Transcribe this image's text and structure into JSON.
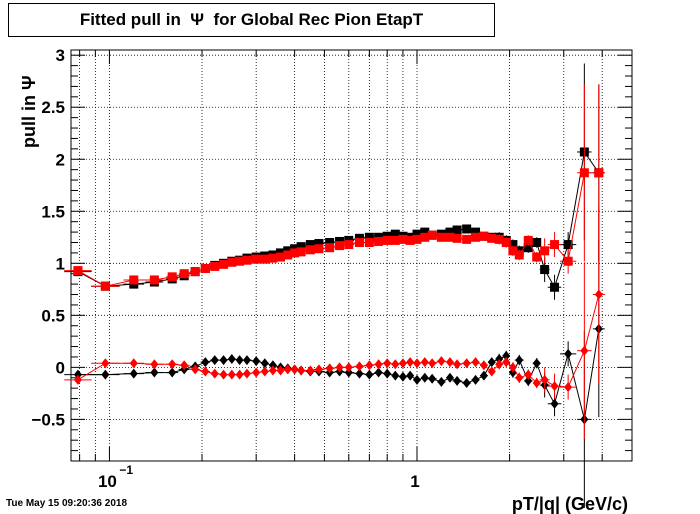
{
  "title": "Fitted pull in  Ψ  for Global Rec Pion EtapT",
  "timestamp": "Tue May 15 09:20:36 2018",
  "chart_data": {
    "type": "scatter",
    "title": "Fitted pull in  Ψ  for Global Rec Pion EtapT",
    "xlabel": "pT/|q| (GeV/c)",
    "ylabel": "pull in  Ψ",
    "x_scale": "log",
    "xlim": [
      0.075,
      5.0
    ],
    "ylim": [
      -0.9,
      3.05
    ],
    "grid": true,
    "x_tick_labels": [
      {
        "value": 0.1,
        "label": "10",
        "sup": "−1"
      },
      {
        "value": 1,
        "label": "1",
        "sup": ""
      }
    ],
    "y_tick_labels": [
      {
        "value": -0.5,
        "label": "−0.5"
      },
      {
        "value": 0,
        "label": "0"
      },
      {
        "value": 0.5,
        "label": "0.5"
      },
      {
        "value": 1,
        "label": "1"
      },
      {
        "value": 1.5,
        "label": "1.5"
      },
      {
        "value": 2,
        "label": "2"
      },
      {
        "value": 2.5,
        "label": "2.5"
      },
      {
        "value": 3,
        "label": "3"
      }
    ],
    "series": [
      {
        "color": "#000000",
        "marker": "square",
        "points": [
          [
            0.079,
            0.92
          ],
          [
            0.097,
            0.78
          ],
          [
            0.12,
            0.8
          ],
          [
            0.14,
            0.82
          ],
          [
            0.16,
            0.85
          ],
          [
            0.175,
            0.88
          ],
          [
            0.19,
            0.92
          ],
          [
            0.205,
            0.95
          ],
          [
            0.22,
            0.98
          ],
          [
            0.235,
            1.0
          ],
          [
            0.25,
            1.02
          ],
          [
            0.265,
            1.03
          ],
          [
            0.28,
            1.05
          ],
          [
            0.3,
            1.06
          ],
          [
            0.32,
            1.07
          ],
          [
            0.34,
            1.08
          ],
          [
            0.36,
            1.1
          ],
          [
            0.38,
            1.12
          ],
          [
            0.4,
            1.14
          ],
          [
            0.42,
            1.16
          ],
          [
            0.45,
            1.18
          ],
          [
            0.48,
            1.19
          ],
          [
            0.52,
            1.2
          ],
          [
            0.56,
            1.21
          ],
          [
            0.6,
            1.22
          ],
          [
            0.65,
            1.24
          ],
          [
            0.7,
            1.25
          ],
          [
            0.75,
            1.25
          ],
          [
            0.8,
            1.26
          ],
          [
            0.85,
            1.28
          ],
          [
            0.9,
            1.26
          ],
          [
            0.95,
            1.25
          ],
          [
            1.0,
            1.28
          ],
          [
            1.06,
            1.3
          ],
          [
            1.12,
            1.27
          ],
          [
            1.2,
            1.28
          ],
          [
            1.28,
            1.3
          ],
          [
            1.35,
            1.32
          ],
          [
            1.45,
            1.33
          ],
          [
            1.55,
            1.3
          ],
          [
            1.65,
            1.26
          ],
          [
            1.75,
            1.25
          ],
          [
            1.85,
            1.25
          ],
          [
            1.95,
            1.22
          ],
          [
            2.05,
            1.18
          ],
          [
            2.15,
            1.12
          ],
          [
            2.3,
            1.15
          ],
          [
            2.45,
            1.2
          ],
          [
            2.6,
            0.94
          ],
          [
            2.8,
            0.77
          ],
          [
            3.1,
            1.18
          ],
          [
            3.5,
            2.07
          ],
          [
            3.9,
            1.87
          ]
        ]
      },
      {
        "color": "#ff0000",
        "marker": "square",
        "points": [
          [
            0.079,
            0.93
          ],
          [
            0.097,
            0.78
          ],
          [
            0.12,
            0.84
          ],
          [
            0.14,
            0.84
          ],
          [
            0.16,
            0.87
          ],
          [
            0.175,
            0.9
          ],
          [
            0.19,
            0.92
          ],
          [
            0.205,
            0.95
          ],
          [
            0.22,
            0.97
          ],
          [
            0.235,
            0.99
          ],
          [
            0.25,
            1.01
          ],
          [
            0.265,
            1.02
          ],
          [
            0.28,
            1.03
          ],
          [
            0.3,
            1.04
          ],
          [
            0.32,
            1.04
          ],
          [
            0.34,
            1.05
          ],
          [
            0.36,
            1.06
          ],
          [
            0.38,
            1.08
          ],
          [
            0.4,
            1.1
          ],
          [
            0.42,
            1.11
          ],
          [
            0.45,
            1.13
          ],
          [
            0.48,
            1.14
          ],
          [
            0.52,
            1.15
          ],
          [
            0.56,
            1.17
          ],
          [
            0.6,
            1.18
          ],
          [
            0.65,
            1.2
          ],
          [
            0.7,
            1.2
          ],
          [
            0.75,
            1.21
          ],
          [
            0.8,
            1.22
          ],
          [
            0.85,
            1.22
          ],
          [
            0.9,
            1.23
          ],
          [
            0.95,
            1.22
          ],
          [
            1.0,
            1.23
          ],
          [
            1.06,
            1.25
          ],
          [
            1.12,
            1.27
          ],
          [
            1.2,
            1.25
          ],
          [
            1.28,
            1.25
          ],
          [
            1.35,
            1.24
          ],
          [
            1.45,
            1.23
          ],
          [
            1.55,
            1.25
          ],
          [
            1.65,
            1.26
          ],
          [
            1.75,
            1.24
          ],
          [
            1.85,
            1.23
          ],
          [
            1.95,
            1.2
          ],
          [
            2.05,
            1.12
          ],
          [
            2.15,
            1.08
          ],
          [
            2.3,
            1.22
          ],
          [
            2.45,
            1.06
          ],
          [
            2.6,
            1.12
          ],
          [
            2.8,
            1.18
          ],
          [
            3.1,
            1.02
          ],
          [
            3.5,
            1.87
          ],
          [
            3.9,
            1.87
          ]
        ]
      },
      {
        "color": "#000000",
        "marker": "diamond",
        "points": [
          [
            0.079,
            -0.07
          ],
          [
            0.097,
            -0.07
          ],
          [
            0.12,
            -0.06
          ],
          [
            0.14,
            -0.05
          ],
          [
            0.16,
            -0.05
          ],
          [
            0.175,
            -0.02
          ],
          [
            0.19,
            0.01
          ],
          [
            0.205,
            0.05
          ],
          [
            0.22,
            0.07
          ],
          [
            0.235,
            0.07
          ],
          [
            0.25,
            0.08
          ],
          [
            0.265,
            0.07
          ],
          [
            0.28,
            0.07
          ],
          [
            0.3,
            0.06
          ],
          [
            0.32,
            0.04
          ],
          [
            0.34,
            0.02
          ],
          [
            0.36,
            0.0
          ],
          [
            0.38,
            -0.01
          ],
          [
            0.4,
            -0.02
          ],
          [
            0.42,
            -0.03
          ],
          [
            0.45,
            -0.04
          ],
          [
            0.48,
            -0.04
          ],
          [
            0.52,
            -0.05
          ],
          [
            0.56,
            -0.04
          ],
          [
            0.6,
            -0.05
          ],
          [
            0.65,
            -0.06
          ],
          [
            0.7,
            -0.07
          ],
          [
            0.75,
            -0.05
          ],
          [
            0.8,
            -0.06
          ],
          [
            0.85,
            -0.08
          ],
          [
            0.9,
            -0.09
          ],
          [
            0.95,
            -0.08
          ],
          [
            1.0,
            -0.12
          ],
          [
            1.06,
            -0.1
          ],
          [
            1.12,
            -0.11
          ],
          [
            1.2,
            -0.14
          ],
          [
            1.28,
            -0.1
          ],
          [
            1.35,
            -0.13
          ],
          [
            1.45,
            -0.15
          ],
          [
            1.55,
            -0.12
          ],
          [
            1.65,
            -0.08
          ],
          [
            1.75,
            0.05
          ],
          [
            1.85,
            0.08
          ],
          [
            1.95,
            0.11
          ],
          [
            2.05,
            -0.05
          ],
          [
            2.15,
            0.07
          ],
          [
            2.3,
            -0.13
          ],
          [
            2.45,
            0.04
          ],
          [
            2.6,
            -0.17
          ],
          [
            2.8,
            -0.35
          ],
          [
            3.1,
            0.13
          ],
          [
            3.5,
            -0.5
          ],
          [
            3.9,
            0.37
          ]
        ]
      },
      {
        "color": "#ff0000",
        "marker": "diamond",
        "points": [
          [
            0.079,
            -0.12
          ],
          [
            0.097,
            0.04
          ],
          [
            0.12,
            0.04
          ],
          [
            0.14,
            0.03
          ],
          [
            0.16,
            0.03
          ],
          [
            0.175,
            0.02
          ],
          [
            0.19,
            -0.02
          ],
          [
            0.205,
            -0.04
          ],
          [
            0.22,
            -0.06
          ],
          [
            0.235,
            -0.07
          ],
          [
            0.25,
            -0.07
          ],
          [
            0.265,
            -0.07
          ],
          [
            0.28,
            -0.06
          ],
          [
            0.3,
            -0.05
          ],
          [
            0.32,
            -0.04
          ],
          [
            0.34,
            -0.03
          ],
          [
            0.36,
            -0.03
          ],
          [
            0.38,
            -0.02
          ],
          [
            0.4,
            -0.02
          ],
          [
            0.42,
            -0.03
          ],
          [
            0.45,
            -0.03
          ],
          [
            0.48,
            -0.02
          ],
          [
            0.52,
            -0.01
          ],
          [
            0.56,
            0.0
          ],
          [
            0.6,
            0.0
          ],
          [
            0.65,
            0.01
          ],
          [
            0.7,
            0.02
          ],
          [
            0.75,
            0.03
          ],
          [
            0.8,
            0.04
          ],
          [
            0.85,
            0.03
          ],
          [
            0.9,
            0.04
          ],
          [
            0.95,
            0.05
          ],
          [
            1.0,
            0.04
          ],
          [
            1.06,
            0.05
          ],
          [
            1.12,
            0.04
          ],
          [
            1.2,
            0.06
          ],
          [
            1.28,
            0.05
          ],
          [
            1.35,
            0.03
          ],
          [
            1.45,
            0.04
          ],
          [
            1.55,
            0.05
          ],
          [
            1.65,
            0.02
          ],
          [
            1.75,
            -0.04
          ],
          [
            1.85,
            0.03
          ],
          [
            1.95,
            0.05
          ],
          [
            2.05,
            0.0
          ],
          [
            2.15,
            -0.1
          ],
          [
            2.3,
            -0.07
          ],
          [
            2.45,
            -0.15
          ],
          [
            2.6,
            -0.12
          ],
          [
            2.8,
            -0.18
          ],
          [
            3.1,
            -0.19
          ],
          [
            3.5,
            0.16
          ],
          [
            3.9,
            0.7
          ]
        ]
      }
    ]
  }
}
